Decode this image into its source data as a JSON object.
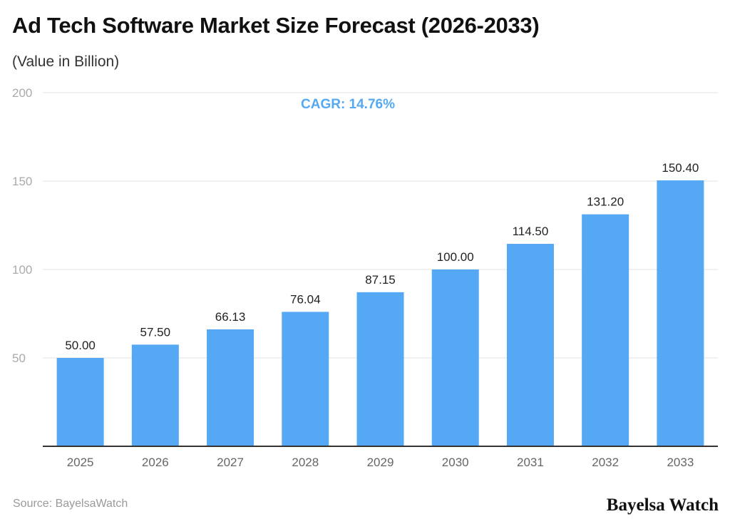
{
  "title": "Ad Tech Software Market Size Forecast (2026-2033)",
  "subtitle": "(Value in Billion)",
  "source": "Source: BayelsaWatch",
  "logo": "Bayelsa Watch",
  "chart_data": {
    "type": "bar",
    "title": "Ad Tech Software Market Size Forecast (2026-2033)",
    "ylabel": "(Value in Billion)",
    "annotation": "CAGR: 14.76%",
    "categories": [
      "2025",
      "2026",
      "2027",
      "2028",
      "2029",
      "2030",
      "2031",
      "2032",
      "2033"
    ],
    "values": [
      50.0,
      57.5,
      66.13,
      76.04,
      87.15,
      100.0,
      114.5,
      131.2,
      150.4
    ],
    "value_labels": [
      "50.00",
      "57.50",
      "66.13",
      "76.04",
      "87.15",
      "100.00",
      "114.50",
      "131.20",
      "150.40"
    ],
    "ylim": [
      0,
      200
    ],
    "yticks": [
      50,
      100,
      150,
      200
    ],
    "grid": true,
    "bar_color": "#54a8f4",
    "annotation_color": "#55a8f2"
  }
}
